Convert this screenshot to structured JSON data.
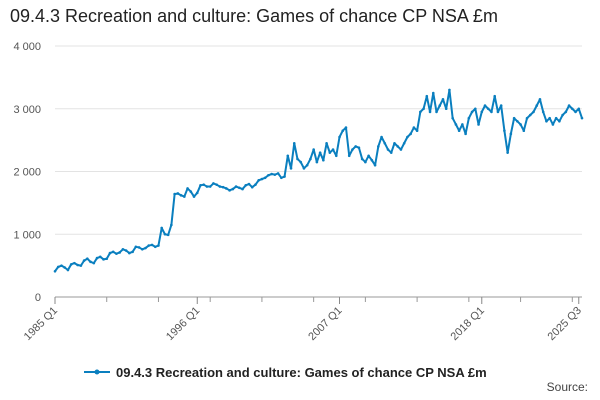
{
  "chart_data": {
    "type": "line",
    "title": "09.4.3 Recreation and culture: Games of chance CP NSA £m",
    "xlabel": "",
    "ylabel": "",
    "ylim": [
      0,
      4000
    ],
    "y_ticks": [
      0,
      1000,
      2000,
      3000,
      4000
    ],
    "y_tick_labels": [
      "0",
      "1 000",
      "2 000",
      "3 000",
      "4 000"
    ],
    "x_tick_labels": [
      "1985 Q1",
      "1996 Q1",
      "2007 Q1",
      "2018 Q1",
      "2025 Q3"
    ],
    "x_tick_index": [
      0,
      44,
      88,
      132,
      162
    ],
    "legend": "09.4.3 Recreation and culture: Games of chance CP NSA £m",
    "series_color": "#0a7fbf",
    "series": [
      {
        "name": "09.4.3 Recreation and culture: Games of chance CP NSA £m",
        "values": [
          410,
          480,
          500,
          470,
          430,
          520,
          540,
          510,
          500,
          580,
          610,
          560,
          540,
          620,
          640,
          600,
          610,
          700,
          720,
          690,
          710,
          760,
          740,
          700,
          720,
          800,
          790,
          760,
          780,
          820,
          830,
          800,
          820,
          1100,
          1000,
          990,
          1150,
          1640,
          1650,
          1620,
          1600,
          1730,
          1680,
          1600,
          1660,
          1780,
          1790,
          1760,
          1760,
          1810,
          1790,
          1760,
          1750,
          1730,
          1700,
          1720,
          1760,
          1740,
          1720,
          1780,
          1800,
          1750,
          1790,
          1860,
          1880,
          1900,
          1940,
          1960,
          1950,
          1970,
          1900,
          1920,
          2250,
          2050,
          2450,
          2200,
          2150,
          2050,
          2100,
          2200,
          2350,
          2150,
          2300,
          2180,
          2450,
          2300,
          2350,
          2250,
          2550,
          2650,
          2700,
          2250,
          2350,
          2400,
          2380,
          2200,
          2150,
          2250,
          2180,
          2100,
          2400,
          2550,
          2450,
          2350,
          2300,
          2450,
          2400,
          2350,
          2450,
          2550,
          2600,
          2700,
          2650,
          2950,
          3000,
          3200,
          2950,
          3250,
          2950,
          3050,
          3150,
          3000,
          3300,
          2850,
          2750,
          2650,
          2750,
          2600,
          2850,
          2950,
          3000,
          2750,
          2950,
          3050,
          3000,
          2950,
          3200,
          2950,
          3050,
          2650,
          2300,
          2600,
          2850,
          2800,
          2750,
          2650,
          2850,
          2900,
          2950,
          3050,
          3150,
          2950,
          2800,
          2850,
          2750,
          2850,
          2800,
          2900,
          2950,
          3050,
          3000,
          2950,
          3000,
          2850
        ]
      }
    ]
  },
  "footer": {
    "source_label": "Source:"
  }
}
